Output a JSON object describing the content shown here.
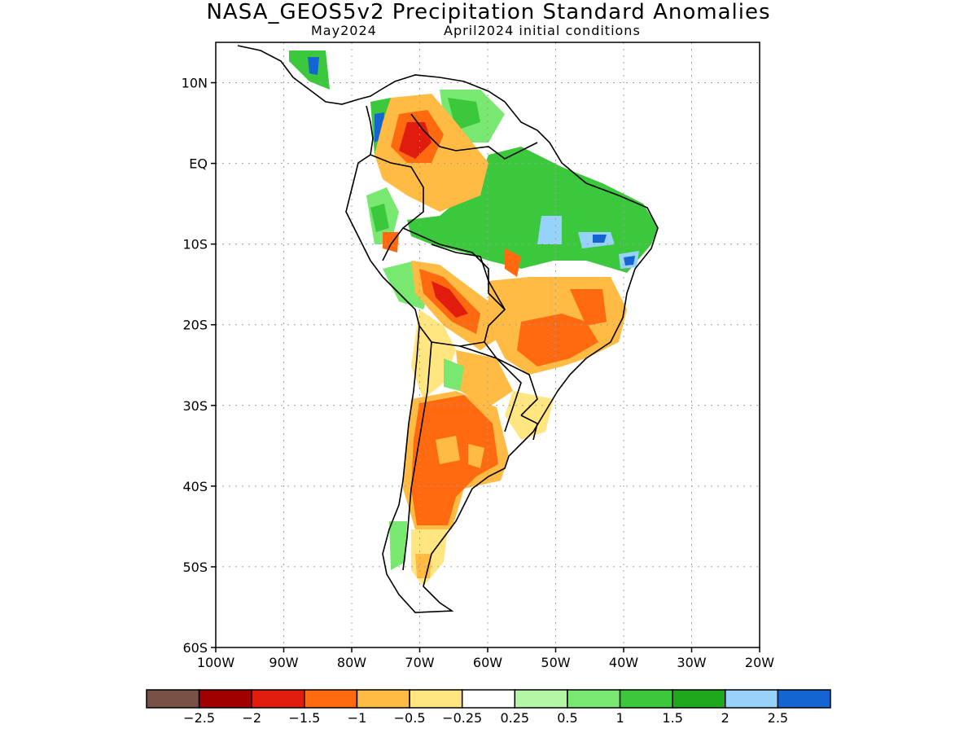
{
  "title": "NASA_GEOS5v2 Precipitation Standard Anomalies",
  "subtitle_left": "May2024",
  "subtitle_right": "April2024 initial conditions",
  "map": {
    "projection": "lat-lon",
    "lon_range": [
      -100,
      -20
    ],
    "lat_range": [
      -60,
      15
    ],
    "grid": "dotted"
  },
  "lat_labels": [
    "10N",
    "EQ",
    "10S",
    "20S",
    "30S",
    "40S",
    "50S",
    "60S"
  ],
  "lon_labels": [
    "100W",
    "90W",
    "80W",
    "70W",
    "60W",
    "50W",
    "40W",
    "30W",
    "20W"
  ],
  "colorbar": {
    "colors": [
      "#7a5146",
      "#a00000",
      "#e01c0e",
      "#ff6a10",
      "#ffbb44",
      "#ffe680",
      "#ffffff",
      "#b4f5a6",
      "#78e870",
      "#3cc83c",
      "#1ea81e",
      "#96d2fa",
      "#1464d2"
    ],
    "labels": [
      "−2.5",
      "−2",
      "−1.5",
      "−1",
      "−0.5",
      "−0.25",
      "0.25",
      "0.5",
      "1",
      "1.5",
      "2",
      "2.5"
    ]
  }
}
